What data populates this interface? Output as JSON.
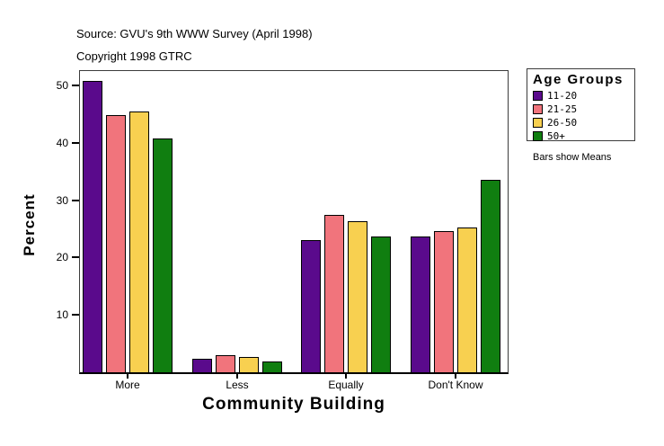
{
  "header": {
    "source_line": "Source: GVU's 9th WWW Survey (April 1998)",
    "copyright_line": "Copyright 1998 GTRC"
  },
  "legend": {
    "title": "Age Groups",
    "note": "Bars show Means"
  },
  "chart_data": {
    "type": "bar",
    "title": "",
    "xlabel": "Community Building",
    "ylabel": "Percent",
    "categories": [
      "More",
      "Less",
      "Equally",
      "Don't Know"
    ],
    "series": [
      {
        "name": "11-20",
        "color": "#5A0A8C",
        "values": [
          50.8,
          2.4,
          23.1,
          23.6
        ]
      },
      {
        "name": "21-25",
        "color": "#F1747C",
        "values": [
          44.8,
          2.9,
          27.5,
          24.6
        ]
      },
      {
        "name": "26-50",
        "color": "#F8D050",
        "values": [
          45.4,
          2.7,
          26.3,
          25.3
        ]
      },
      {
        "name": "50+",
        "color": "#107E10",
        "values": [
          40.8,
          1.9,
          23.7,
          33.6
        ]
      }
    ],
    "ylim": [
      0,
      52.5
    ],
    "yticks": [
      10,
      20,
      30,
      40,
      50
    ],
    "grid": false,
    "legend_position": "right",
    "bar_outline_color": "#000000",
    "note": "Bars show Means"
  }
}
